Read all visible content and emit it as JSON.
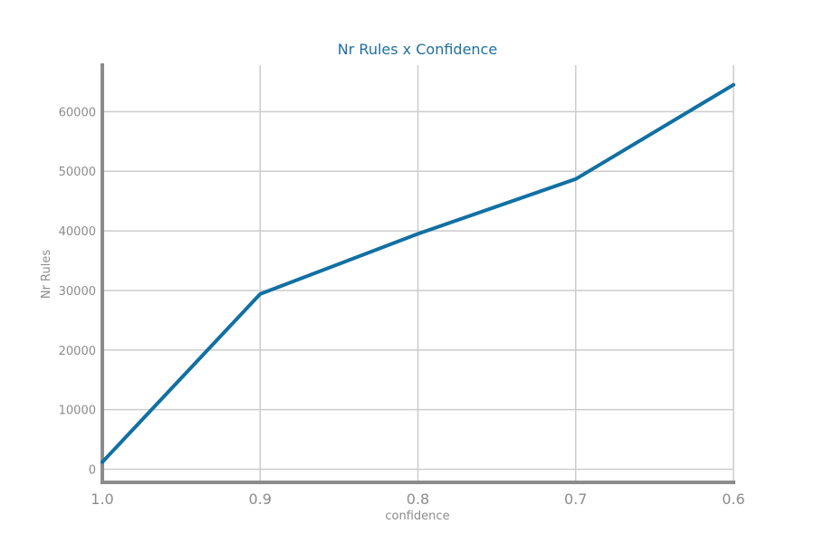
{
  "chart_data": {
    "type": "line",
    "title": "Nr Rules x Confidence",
    "xlabel": "confidence",
    "ylabel": "Nr Rules",
    "x": [
      1.0,
      0.9,
      0.8,
      0.7,
      0.6
    ],
    "series": [
      {
        "values": [
          1200,
          29400,
          39500,
          48700,
          64500
        ]
      }
    ],
    "x_ticks": [
      "1.0",
      "0.9",
      "0.8",
      "0.7",
      "0.6"
    ],
    "y_ticks": [
      "0",
      "10000",
      "20000",
      "30000",
      "40000",
      "50000",
      "60000"
    ],
    "y_tick_values": [
      0,
      10000,
      20000,
      30000,
      40000,
      50000,
      60000
    ],
    "xlim": [
      1.0,
      0.6
    ],
    "ylim": [
      -2200,
      67800
    ],
    "x_reversed": true,
    "grid": true,
    "color": "#1170a3"
  }
}
